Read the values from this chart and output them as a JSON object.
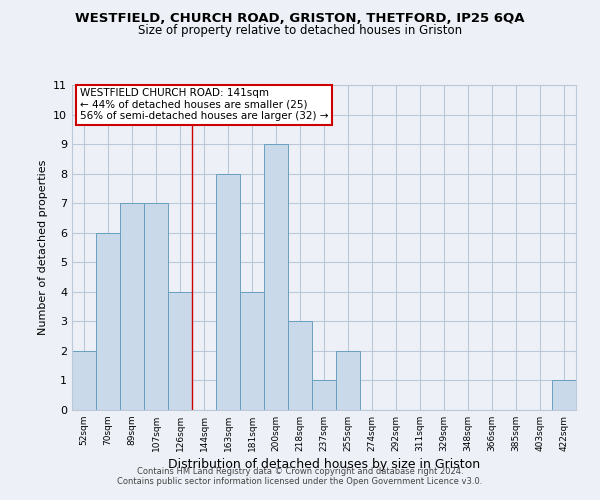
{
  "title": "WESTFIELD, CHURCH ROAD, GRISTON, THETFORD, IP25 6QA",
  "subtitle": "Size of property relative to detached houses in Griston",
  "xlabel": "Distribution of detached houses by size in Griston",
  "ylabel": "Number of detached properties",
  "bin_labels": [
    "52sqm",
    "70sqm",
    "89sqm",
    "107sqm",
    "126sqm",
    "144sqm",
    "163sqm",
    "181sqm",
    "200sqm",
    "218sqm",
    "237sqm",
    "255sqm",
    "274sqm",
    "292sqm",
    "311sqm",
    "329sqm",
    "348sqm",
    "366sqm",
    "385sqm",
    "403sqm",
    "422sqm"
  ],
  "bar_values": [
    2,
    6,
    7,
    7,
    4,
    0,
    8,
    4,
    9,
    3,
    1,
    2,
    0,
    0,
    0,
    0,
    0,
    0,
    0,
    0,
    1
  ],
  "bar_color": "#c9d9ea",
  "bar_edge_color": "#6a9fc0",
  "grid_color": "#bcc8d8",
  "background_color": "#edf1f7",
  "vline_x_idx": 5,
  "vline_color": "#cc0000",
  "ylim": [
    0,
    11
  ],
  "yticks": [
    0,
    1,
    2,
    3,
    4,
    5,
    6,
    7,
    8,
    9,
    10,
    11
  ],
  "annotation_text": "WESTFIELD CHURCH ROAD: 141sqm\n← 44% of detached houses are smaller (25)\n56% of semi-detached houses are larger (32) →",
  "annotation_box_color": "#ffffff",
  "annotation_box_edge": "#cc0000",
  "footer1": "Contains HM Land Registry data © Crown copyright and database right 2024.",
  "footer2": "Contains public sector information licensed under the Open Government Licence v3.0."
}
